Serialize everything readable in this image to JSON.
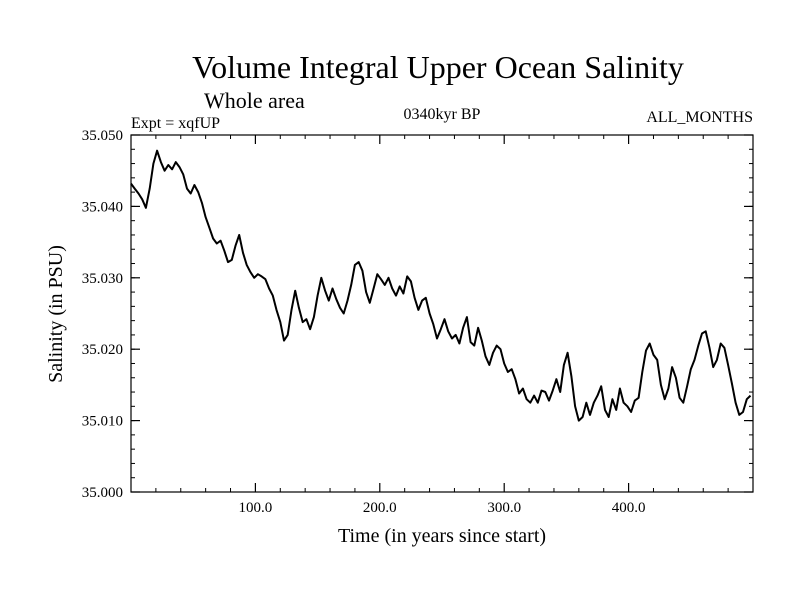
{
  "chart_data": {
    "type": "line",
    "title": "Volume Integral Upper Ocean Salinity",
    "subtitle": "Whole area",
    "header_left": "Expt = xqfUP",
    "header_center": "0340kyr BP",
    "header_right": "ALL_MONTHS",
    "xlabel": "Time (in years since start)",
    "ylabel": "Salinity (in PSU)",
    "xlim": [
      0,
      500
    ],
    "ylim": [
      35.0,
      35.05
    ],
    "xticks": [
      100,
      200,
      300,
      400
    ],
    "xtick_labels": [
      "100.0",
      "200.0",
      "300.0",
      "400.0"
    ],
    "yticks": [
      35.0,
      35.01,
      35.02,
      35.03,
      35.04,
      35.05
    ],
    "ytick_labels": [
      "35.000",
      "35.010",
      "35.020",
      "35.030",
      "35.040",
      "35.050"
    ],
    "grid": false,
    "series": [
      {
        "name": "Salinity",
        "color": "#000000",
        "x": [
          0,
          3,
          6,
          9,
          12,
          15,
          18,
          21,
          24,
          27,
          30,
          33,
          36,
          39,
          42,
          45,
          48,
          51,
          54,
          57,
          60,
          63,
          66,
          69,
          72,
          75,
          78,
          81,
          84,
          87,
          90,
          93,
          96,
          99,
          102,
          105,
          108,
          111,
          114,
          117,
          120,
          123,
          126,
          129,
          132,
          135,
          138,
          141,
          144,
          147,
          150,
          153,
          156,
          159,
          162,
          165,
          168,
          171,
          174,
          177,
          180,
          183,
          186,
          189,
          192,
          195,
          198,
          201,
          204,
          207,
          210,
          213,
          216,
          219,
          222,
          225,
          228,
          231,
          234,
          237,
          240,
          243,
          246,
          249,
          252,
          255,
          258,
          261,
          264,
          267,
          270,
          273,
          276,
          279,
          282,
          285,
          288,
          291,
          294,
          297,
          300,
          303,
          306,
          309,
          312,
          315,
          318,
          321,
          324,
          327,
          330,
          333,
          336,
          339,
          342,
          345,
          348,
          351,
          354,
          357,
          360,
          363,
          366,
          369,
          372,
          375,
          378,
          381,
          384,
          387,
          390,
          393,
          396,
          399,
          402,
          405,
          408,
          411,
          414,
          417,
          420,
          423,
          426,
          429,
          432,
          435,
          438,
          441,
          444,
          447,
          450,
          453,
          456,
          459,
          462,
          465,
          468,
          471,
          474,
          477,
          480,
          483,
          486,
          489,
          492,
          495,
          498
        ],
        "y": [
          35.0432,
          35.0425,
          35.0418,
          35.041,
          35.0398,
          35.0425,
          35.046,
          35.0478,
          35.0462,
          35.045,
          35.0458,
          35.0452,
          35.0462,
          35.0455,
          35.0445,
          35.0425,
          35.0418,
          35.043,
          35.042,
          35.0405,
          35.0385,
          35.037,
          35.0355,
          35.0348,
          35.0352,
          35.0338,
          35.0322,
          35.0325,
          35.0345,
          35.036,
          35.0335,
          35.0318,
          35.0308,
          35.03,
          35.0305,
          35.0302,
          35.0298,
          35.0285,
          35.0275,
          35.0255,
          35.0238,
          35.0212,
          35.022,
          35.0255,
          35.0282,
          35.0258,
          35.0238,
          35.0242,
          35.0228,
          35.0245,
          35.0275,
          35.03,
          35.0282,
          35.0268,
          35.0285,
          35.027,
          35.0258,
          35.025,
          35.0268,
          35.029,
          35.0318,
          35.0322,
          35.031,
          35.028,
          35.0265,
          35.0285,
          35.0305,
          35.0298,
          35.029,
          35.03,
          35.0285,
          35.0275,
          35.0288,
          35.0278,
          35.0302,
          35.0295,
          35.0272,
          35.0255,
          35.0268,
          35.0272,
          35.025,
          35.0235,
          35.0215,
          35.0228,
          35.0242,
          35.0225,
          35.0215,
          35.022,
          35.0208,
          35.023,
          35.0245,
          35.021,
          35.0205,
          35.023,
          35.0212,
          35.019,
          35.0178,
          35.0195,
          35.0205,
          35.02,
          35.018,
          35.0168,
          35.0172,
          35.0158,
          35.0138,
          35.0145,
          35.013,
          35.0125,
          35.0135,
          35.0125,
          35.0142,
          35.014,
          35.0128,
          35.0142,
          35.0158,
          35.014,
          35.0178,
          35.0195,
          35.0162,
          35.012,
          35.01,
          35.0105,
          35.0125,
          35.0108,
          35.0125,
          35.0135,
          35.0148,
          35.0115,
          35.0105,
          35.013,
          35.0115,
          35.0145,
          35.0125,
          35.012,
          35.0112,
          35.0128,
          35.0132,
          35.0168,
          35.0198,
          35.0208,
          35.0192,
          35.0185,
          35.015,
          35.013,
          35.0145,
          35.0175,
          35.016,
          35.0132,
          35.0125,
          35.0148,
          35.0172,
          35.0185,
          35.0205,
          35.0222,
          35.0225,
          35.0202,
          35.0175,
          35.0185,
          35.0208,
          35.0202,
          35.0178,
          35.0152,
          35.0125,
          35.0108,
          35.0112,
          35.013,
          35.0135
        ]
      }
    ]
  }
}
